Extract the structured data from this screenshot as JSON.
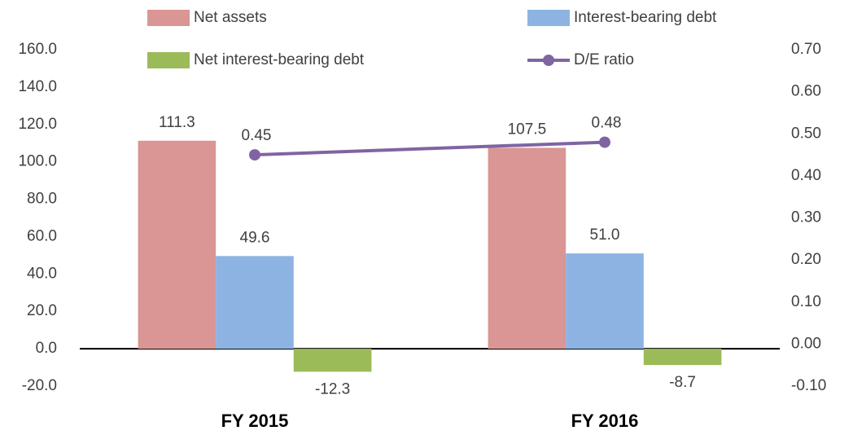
{
  "chart_data": {
    "type": "bar",
    "categories": [
      "FY 2015",
      "FY 2016"
    ],
    "series": [
      {
        "name": "Net assets",
        "color": "#d99694",
        "values": [
          111.3,
          107.5
        ]
      },
      {
        "name": "Interest-bearing debt",
        "color": "#8db3e2",
        "values": [
          49.6,
          51.0
        ],
        "value_labels": [
          "49.6",
          "51.0"
        ]
      },
      {
        "name": "Net interest-bearing debt",
        "color": "#9bbb59",
        "values": [
          -12.3,
          -8.7
        ]
      },
      {
        "name": "D/E ratio",
        "color": "#8064a2",
        "type": "line",
        "axis": "y2",
        "values": [
          0.45,
          0.48
        ]
      }
    ],
    "ylim": [
      -20,
      160
    ],
    "yticks": [
      {
        "value": -20,
        "label": "-20.0"
      },
      {
        "value": 0,
        "label": "0.0"
      },
      {
        "value": 20,
        "label": "20.0"
      },
      {
        "value": 40,
        "label": "40.0"
      },
      {
        "value": 60,
        "label": "60.0"
      },
      {
        "value": 80,
        "label": "80.0"
      },
      {
        "value": 100,
        "label": "100.0"
      },
      {
        "value": 120,
        "label": "120.0"
      },
      {
        "value": 140,
        "label": "140.0"
      },
      {
        "value": 160,
        "label": "160.0"
      }
    ],
    "y2lim": [
      -0.1,
      0.7
    ],
    "y2ticks": [
      {
        "value": -0.1,
        "label": "-0.10"
      },
      {
        "value": 0,
        "label": "0.00"
      },
      {
        "value": 0.1,
        "label": "0.10"
      },
      {
        "value": 0.2,
        "label": "0.20"
      },
      {
        "value": 0.3,
        "label": "0.30"
      },
      {
        "value": 0.4,
        "label": "0.40"
      },
      {
        "value": 0.5,
        "label": "0.50"
      },
      {
        "value": 0.6,
        "label": "0.60"
      },
      {
        "value": 0.7,
        "label": "0.70"
      }
    ],
    "grid": false
  }
}
